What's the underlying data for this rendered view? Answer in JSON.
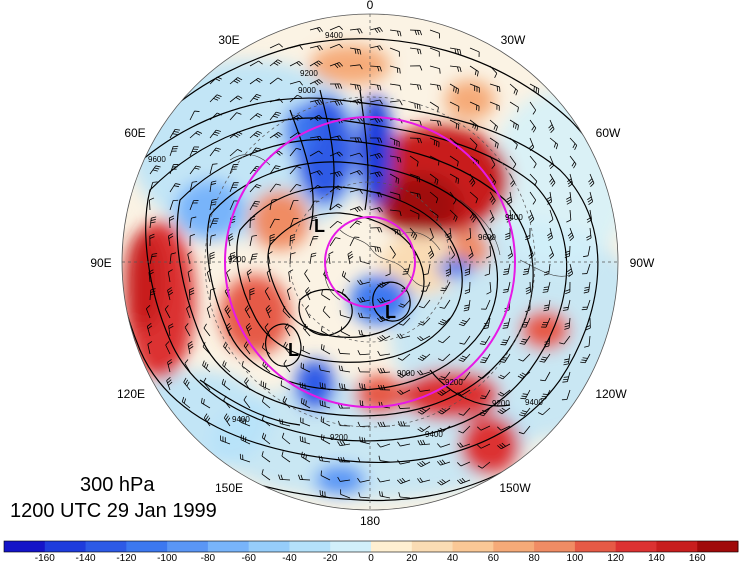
{
  "longitude_labels": [
    {
      "text": "0",
      "lon": 0
    },
    {
      "text": "30W",
      "lon": -30
    },
    {
      "text": "60W",
      "lon": -60
    },
    {
      "text": "90W",
      "lon": -90
    },
    {
      "text": "120W",
      "lon": -120
    },
    {
      "text": "150W",
      "lon": -150
    },
    {
      "text": "180",
      "lon": 180
    },
    {
      "text": "150E",
      "lon": 150
    },
    {
      "text": "120E",
      "lon": 120
    },
    {
      "text": "90E",
      "lon": 90
    },
    {
      "text": "60E",
      "lon": 60
    },
    {
      "text": "30E",
      "lon": 30
    }
  ],
  "level_text": "300 hPa",
  "time_text": "1200 UTC 29 Jan 1999",
  "low_symbol": "L",
  "contour_labels": [
    "9400",
    "9200",
    "9000",
    "9200",
    "9400",
    "9600",
    "9400",
    "9200",
    "9600",
    "9400",
    "9200",
    "9000",
    "9200",
    "9400"
  ],
  "colorbar": {
    "ticks": [
      "-160",
      "-140",
      "-120",
      "-100",
      "-80",
      "-60",
      "-40",
      "-20",
      "0",
      "20",
      "40",
      "60",
      "80",
      "100",
      "120",
      "140",
      "160"
    ],
    "colors": [
      "#1414c8",
      "#1e3cdc",
      "#2d5ae6",
      "#3c78f0",
      "#5a96f5",
      "#78b4fa",
      "#96cdfa",
      "#b4e1fa",
      "#d2f0fa",
      "#fff0d2",
      "#fadcb4",
      "#fac896",
      "#f5aa78",
      "#f08c64",
      "#e65a46",
      "#dc3232",
      "#c81e1e",
      "#a00a0a"
    ]
  },
  "colors": {
    "circle_magenta": "#e619e6",
    "contour": "#000000",
    "land_bg": "#e8e8e8"
  }
}
